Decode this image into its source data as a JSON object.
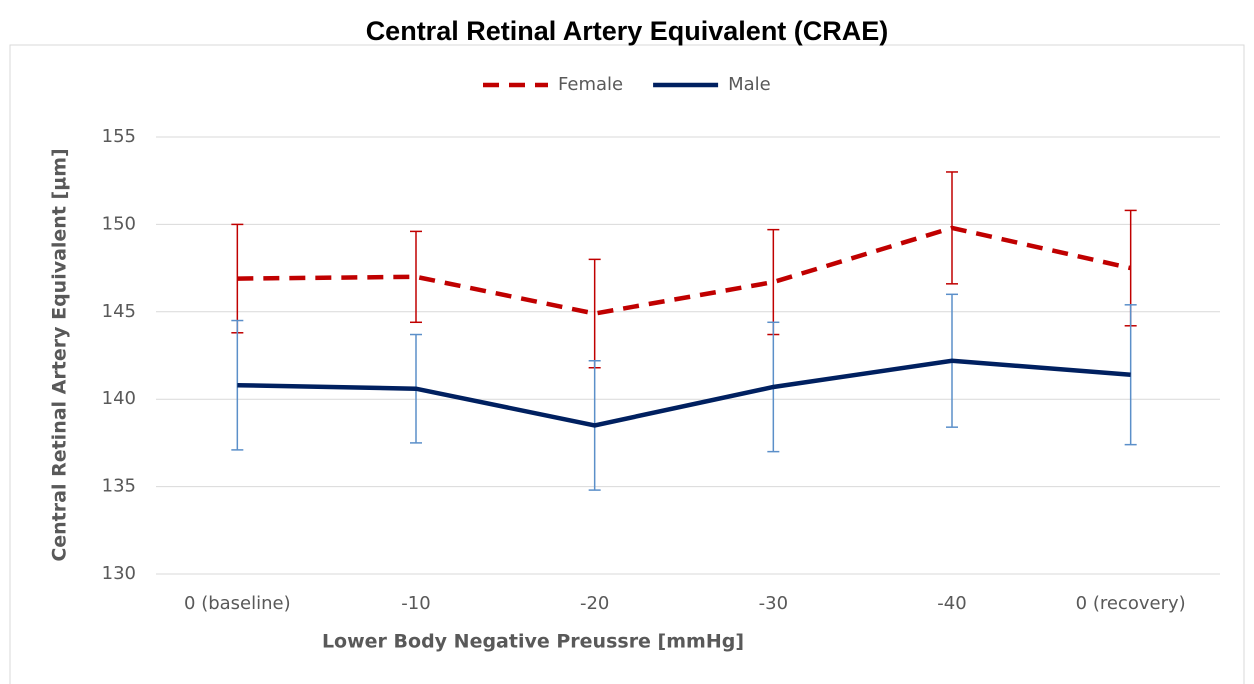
{
  "chart_data": {
    "type": "line",
    "title": "Central Retinal Artery Equivalent (CRAE)",
    "x_label": "Lower Body Negative Preussre [mmHg]",
    "y_label": "Central Retinal Artery Equivalent [µm]",
    "categories": [
      "0 (baseline)",
      "-10",
      "-20",
      "-30",
      "-40",
      "0 (recovery)"
    ],
    "series": [
      {
        "name": "Female",
        "color": "#c00000",
        "error_color": "#c00000",
        "line_style": "dashed",
        "values": [
          146.9,
          147.0,
          144.9,
          146.7,
          149.8,
          147.5
        ],
        "errors": [
          3.1,
          2.6,
          3.1,
          3.0,
          3.2,
          3.3
        ]
      },
      {
        "name": "Male",
        "color": "#002060",
        "error_color": "#5b8fc9",
        "line_style": "solid",
        "values": [
          140.8,
          140.6,
          138.5,
          140.7,
          142.2,
          141.4
        ],
        "errors": [
          3.7,
          3.1,
          3.7,
          3.7,
          3.8,
          4.0
        ]
      }
    ],
    "ylim": [
      130,
      155
    ],
    "yticks": [
      130,
      135,
      140,
      145,
      150,
      155
    ],
    "grid": true,
    "legend": "top"
  }
}
